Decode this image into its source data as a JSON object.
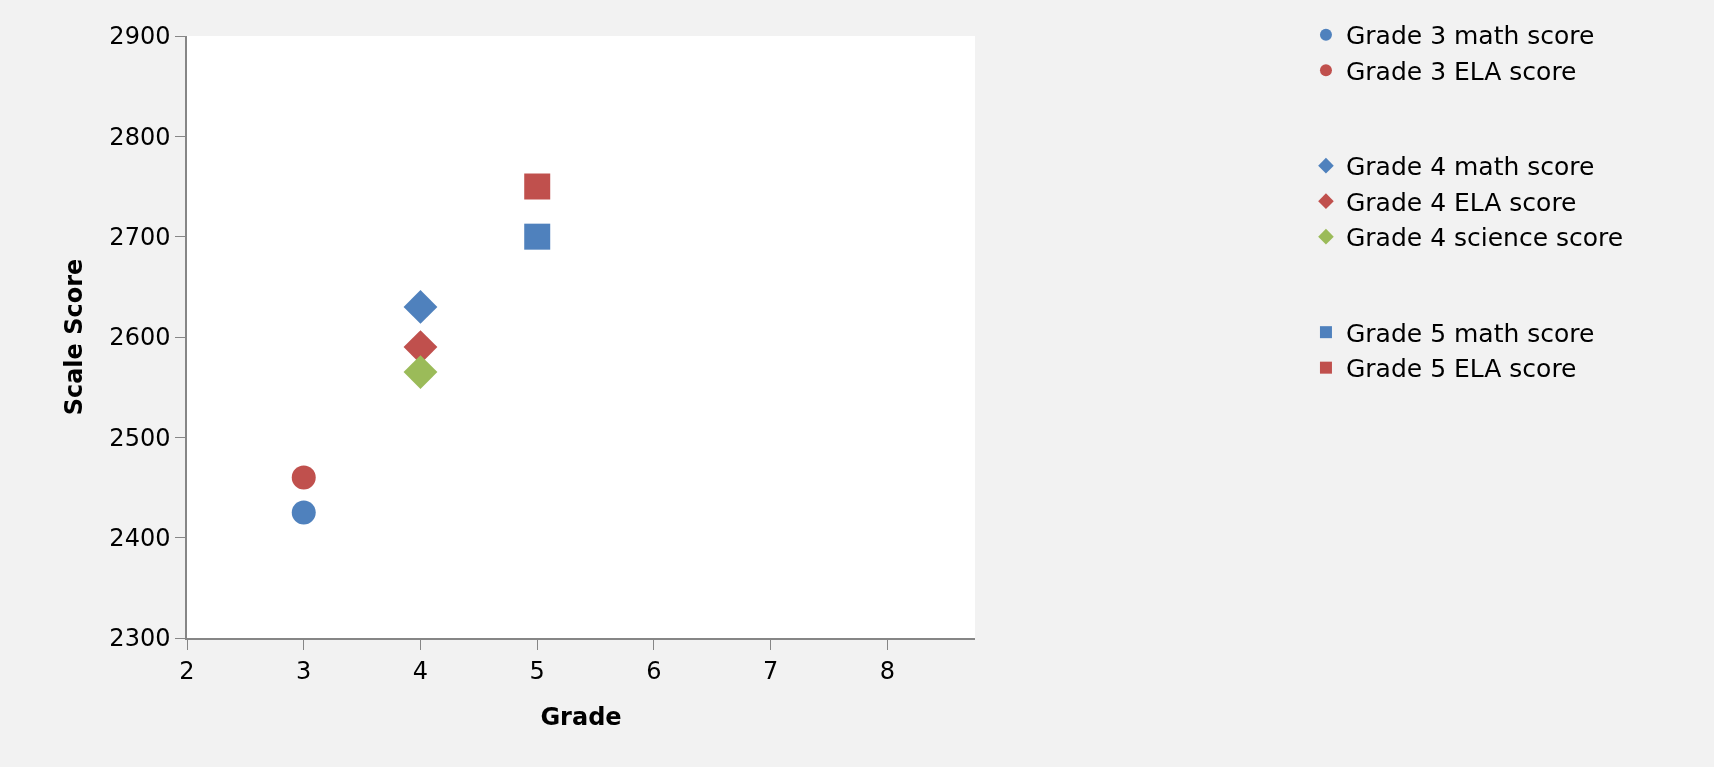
{
  "chart_data": {
    "type": "scatter",
    "xlabel": "Grade",
    "ylabel": "Scale Score",
    "xlim": [
      2,
      8.75
    ],
    "xticks": [
      2,
      3,
      4,
      5,
      6,
      7,
      8
    ],
    "ylim": [
      2300,
      2900
    ],
    "yticks": [
      2300,
      2400,
      2500,
      2600,
      2700,
      2800,
      2900
    ],
    "legend": "right",
    "series": [
      {
        "name": "Grade 3 math score",
        "color": "#4f81bd",
        "marker": "circle",
        "x": [
          3
        ],
        "values": [
          2425
        ]
      },
      {
        "name": "Grade 3 ELA score",
        "color": "#c0504d",
        "marker": "circle",
        "x": [
          3
        ],
        "values": [
          2460
        ]
      },
      {
        "name": "Grade 4 math score",
        "color": "#4f81bd",
        "marker": "diamond",
        "x": [
          4
        ],
        "values": [
          2630
        ]
      },
      {
        "name": "Grade 4 ELA score",
        "color": "#c0504d",
        "marker": "diamond",
        "x": [
          4
        ],
        "values": [
          2590
        ]
      },
      {
        "name": "Grade 4 science score",
        "color": "#9bbb59",
        "marker": "diamond",
        "x": [
          4
        ],
        "values": [
          2565
        ]
      },
      {
        "name": "Grade 5 math score",
        "color": "#4f81bd",
        "marker": "square",
        "x": [
          5
        ],
        "values": [
          2700
        ]
      },
      {
        "name": "Grade 5 ELA score",
        "color": "#c0504d",
        "marker": "square",
        "x": [
          5
        ],
        "values": [
          2750
        ]
      }
    ]
  }
}
